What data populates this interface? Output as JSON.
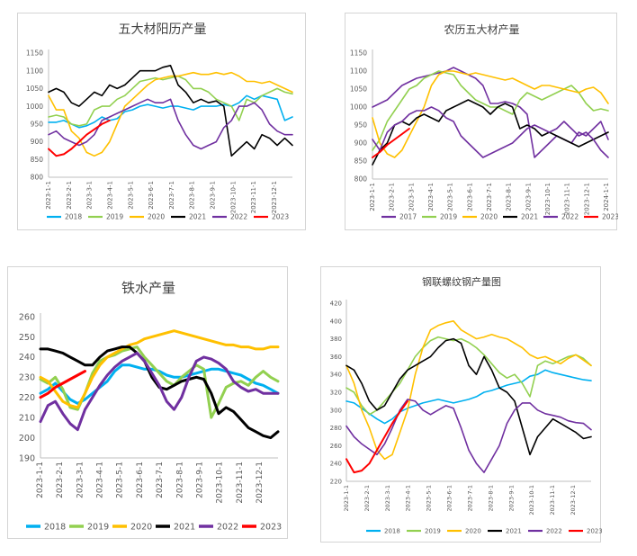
{
  "colors": {
    "2017": "#7030a0",
    "2018": "#00b0f0",
    "2019": "#92d050",
    "2020": "#ffc000",
    "2021": "#000000",
    "2022": "#7030a0",
    "2023": "#ff0000",
    "axis": "#bfbfbf",
    "text": "#595959"
  },
  "chart_data": [
    {
      "type": "line",
      "title": "五大材阳历产量",
      "ylim": [
        800,
        1150
      ],
      "yticks": [
        800,
        850,
        900,
        950,
        1000,
        1050,
        1100,
        1150
      ],
      "x_tick_labels": [
        "2023-1-1",
        "2023-2-1",
        "2023-3-1",
        "2023-4-1",
        "2023-5-1",
        "2023-6-1",
        "2023-7-1",
        "2023-8-1",
        "2023-9-1",
        "2023-10-1",
        "2023-11-1",
        "2023-12-1"
      ],
      "grid": false,
      "legend": "bottom",
      "series": [
        {
          "name": "2018",
          "values": [
            955,
            955,
            960,
            950,
            940,
            945,
            955,
            970,
            960,
            965,
            985,
            990,
            1000,
            1005,
            1000,
            995,
            1000,
            1000,
            995,
            990,
            1000,
            1000,
            1000,
            1005,
            1000,
            1010,
            1030,
            1020,
            1030,
            1025,
            1020,
            960,
            970
          ]
        },
        {
          "name": "2019",
          "values": [
            970,
            975,
            970,
            950,
            945,
            950,
            990,
            1000,
            1000,
            1020,
            1030,
            1050,
            1070,
            1075,
            1080,
            1075,
            1080,
            1085,
            1075,
            1050,
            1050,
            1040,
            1020,
            1010,
            1000,
            960,
            1020,
            1010,
            1030,
            1040,
            1050,
            1040,
            1035
          ]
        },
        {
          "name": "2020",
          "values": [
            1030,
            990,
            990,
            930,
            910,
            870,
            860,
            870,
            900,
            950,
            1000,
            1020,
            1040,
            1060,
            1075,
            1080,
            1085,
            1085,
            1090,
            1095,
            1090,
            1090,
            1095,
            1090,
            1095,
            1085,
            1070,
            1070,
            1065,
            1070,
            1060,
            1050,
            1040
          ]
        },
        {
          "name": "2021",
          "values": [
            1040,
            1050,
            1040,
            1010,
            1000,
            1020,
            1040,
            1030,
            1060,
            1050,
            1060,
            1080,
            1100,
            1100,
            1100,
            1110,
            1115,
            1060,
            1040,
            1010,
            1020,
            1010,
            1015,
            1000,
            860,
            880,
            900,
            880,
            920,
            910,
            890,
            910,
            890
          ]
        },
        {
          "name": "2022",
          "values": [
            920,
            930,
            910,
            900,
            890,
            900,
            920,
            960,
            970,
            980,
            990,
            1000,
            1010,
            1020,
            1010,
            1010,
            1020,
            960,
            920,
            890,
            880,
            890,
            900,
            940,
            960,
            1000,
            1000,
            1010,
            990,
            950,
            930,
            920,
            920
          ]
        },
        {
          "name": "2023",
          "values": [
            880,
            860,
            865,
            880,
            900,
            920,
            935,
            950,
            960
          ]
        }
      ]
    },
    {
      "type": "line",
      "title": "农历五大材产量",
      "ylim": [
        800,
        1150
      ],
      "yticks": [
        800,
        850,
        900,
        950,
        1000,
        1050,
        1100,
        1150
      ],
      "x_tick_labels": [
        "2023-1-1",
        "2023-2-1",
        "2023-3-1",
        "2023-4-1",
        "2023-5-1",
        "2023-6-1",
        "2023-7-1",
        "2023-8-1",
        "2023-9-1",
        "2023-10-1",
        "2023-11-1",
        "2023-12-1",
        "2024-1-1"
      ],
      "grid": false,
      "legend": "bottom",
      "series": [
        {
          "name": "2017",
          "values": [
            1000,
            1010,
            1020,
            1040,
            1060,
            1070,
            1080,
            1085,
            1090,
            1095,
            1100,
            1110,
            1100,
            1090,
            1080,
            1060,
            1010,
            1010,
            1015,
            1010,
            1000,
            980,
            860,
            880,
            900,
            920,
            910,
            900,
            930,
            920,
            940,
            960,
            910
          ]
        },
        {
          "name": "2019",
          "values": [
            880,
            910,
            960,
            990,
            1020,
            1050,
            1060,
            1080,
            1090,
            1100,
            1095,
            1090,
            1060,
            1040,
            1020,
            1010,
            1000,
            1000,
            990,
            980,
            1020,
            1040,
            1030,
            1020,
            1030,
            1040,
            1050,
            1060,
            1040,
            1010,
            990,
            995,
            990
          ]
        },
        {
          "name": "2020",
          "values": [
            970,
            900,
            870,
            860,
            880,
            920,
            960,
            1000,
            1060,
            1090,
            1100,
            1100,
            1095,
            1090,
            1095,
            1090,
            1085,
            1080,
            1075,
            1080,
            1070,
            1060,
            1050,
            1060,
            1060,
            1055,
            1050,
            1045,
            1040,
            1050,
            1055,
            1040,
            1010
          ]
        },
        {
          "name": "2021",
          "values": [
            840,
            880,
            900,
            950,
            960,
            950,
            970,
            980,
            970,
            960,
            990,
            1000,
            1010,
            1020,
            1010,
            1000,
            980,
            1000,
            1010,
            1000,
            940,
            950,
            940,
            920,
            930,
            920,
            910,
            900,
            890,
            900,
            910,
            920,
            930
          ]
        },
        {
          "name": "2022",
          "values": [
            910,
            880,
            930,
            950,
            960,
            980,
            990,
            990,
            1000,
            990,
            970,
            960,
            920,
            900,
            880,
            860,
            870,
            880,
            890,
            900,
            920,
            940,
            950,
            940,
            930,
            940,
            960,
            940,
            920,
            930,
            910,
            880,
            860
          ]
        },
        {
          "name": "2023",
          "values": [
            860,
            875,
            895,
            910,
            925,
            940
          ]
        }
      ]
    },
    {
      "type": "line",
      "title": "铁水产量",
      "ylim": [
        190,
        260
      ],
      "yticks": [
        190,
        200,
        210,
        220,
        230,
        240,
        250,
        260
      ],
      "x_tick_labels": [
        "2023-1-1",
        "2023-2-1",
        "2023-3-1",
        "2023-4-1",
        "2023-5-1",
        "2023-6-1",
        "2023-7-1",
        "2023-8-1",
        "2023-9-1",
        "2023-10-1",
        "2023-11-1",
        "2023-12-1"
      ],
      "grid": false,
      "legend": "bottom",
      "series": [
        {
          "name": "2018",
          "values": [
            222,
            224,
            227,
            223,
            219,
            217,
            219,
            222,
            225,
            228,
            233,
            236,
            236,
            235,
            234,
            234,
            233,
            231,
            230,
            230,
            231,
            232,
            233,
            234,
            234,
            233,
            232,
            231,
            229,
            227,
            226,
            224,
            222
          ]
        },
        {
          "name": "2019",
          "values": [
            229,
            227,
            230,
            224,
            215,
            214,
            222,
            232,
            238,
            240,
            241,
            243,
            244,
            245,
            240,
            236,
            232,
            228,
            226,
            230,
            233,
            236,
            234,
            210,
            217,
            225,
            227,
            228,
            226,
            230,
            233,
            230,
            228
          ]
        },
        {
          "name": "2020",
          "values": [
            230,
            228,
            223,
            218,
            216,
            215,
            222,
            230,
            236,
            240,
            242,
            244,
            246,
            247,
            249,
            250,
            251,
            252,
            253,
            252,
            251,
            250,
            249,
            248,
            247,
            246,
            246,
            245,
            245,
            244,
            244,
            245,
            245
          ]
        },
        {
          "name": "2021",
          "values": [
            244,
            244,
            243,
            242,
            240,
            238,
            236,
            236,
            240,
            243,
            244,
            245,
            245,
            242,
            238,
            230,
            225,
            224,
            226,
            228,
            229,
            230,
            229,
            222,
            212,
            215,
            213,
            209,
            205,
            203,
            201,
            200,
            203
          ]
        },
        {
          "name": "2022",
          "values": [
            208,
            216,
            218,
            212,
            207,
            204,
            214,
            220,
            226,
            231,
            235,
            238,
            240,
            242,
            238,
            232,
            226,
            218,
            214,
            220,
            230,
            238,
            240,
            239,
            237,
            234,
            228,
            225,
            223,
            224,
            222,
            222,
            222
          ]
        },
        {
          "name": "2023",
          "values": [
            220,
            222,
            225,
            227,
            229,
            231,
            233
          ]
        }
      ]
    },
    {
      "type": "line",
      "title": "钢联螺纹钢产量图",
      "ylim": [
        220,
        420
      ],
      "yticks": [
        220,
        240,
        260,
        280,
        300,
        320,
        340,
        360,
        380,
        400,
        420
      ],
      "x_tick_labels": [
        "2023-1-1",
        "2023-2-1",
        "2023-3-1",
        "2023-4-1",
        "2023-5-1",
        "2023-6-1",
        "2023-7-1",
        "2023-8-1",
        "2023-9-1",
        "2023-10-1",
        "2023-11-1",
        "2023-12-1"
      ],
      "grid": false,
      "legend": "bottom",
      "series": [
        {
          "name": "2018",
          "values": [
            310,
            308,
            302,
            296,
            290,
            285,
            290,
            298,
            302,
            305,
            308,
            310,
            312,
            310,
            308,
            310,
            312,
            315,
            320,
            322,
            325,
            328,
            330,
            332,
            338,
            340,
            345,
            342,
            340,
            338,
            336,
            334,
            333
          ]
        },
        {
          "name": "2019",
          "values": [
            325,
            320,
            305,
            295,
            300,
            310,
            320,
            330,
            345,
            360,
            370,
            378,
            382,
            380,
            378,
            380,
            376,
            370,
            362,
            352,
            342,
            336,
            340,
            330,
            315,
            350,
            355,
            352,
            356,
            360,
            362,
            358,
            350
          ]
        },
        {
          "name": "2020",
          "values": [
            350,
            330,
            300,
            280,
            255,
            245,
            250,
            275,
            300,
            340,
            370,
            390,
            395,
            398,
            400,
            390,
            385,
            380,
            382,
            385,
            382,
            380,
            375,
            370,
            362,
            358,
            360,
            356,
            352,
            358,
            362,
            356,
            350
          ]
        },
        {
          "name": "2021",
          "values": [
            350,
            345,
            330,
            310,
            300,
            305,
            320,
            335,
            345,
            350,
            355,
            360,
            370,
            378,
            380,
            375,
            350,
            340,
            360,
            345,
            325,
            320,
            310,
            280,
            250,
            270,
            280,
            290,
            285,
            280,
            275,
            268,
            270
          ]
        },
        {
          "name": "2022",
          "values": [
            282,
            270,
            262,
            256,
            250,
            262,
            280,
            300,
            312,
            310,
            300,
            295,
            300,
            305,
            302,
            280,
            255,
            240,
            230,
            245,
            260,
            285,
            300,
            308,
            308,
            300,
            296,
            294,
            292,
            288,
            286,
            285,
            278
          ]
        },
        {
          "name": "2023",
          "values": [
            245,
            230,
            232,
            240,
            255,
            270,
            285,
            298,
            310
          ]
        }
      ]
    }
  ]
}
